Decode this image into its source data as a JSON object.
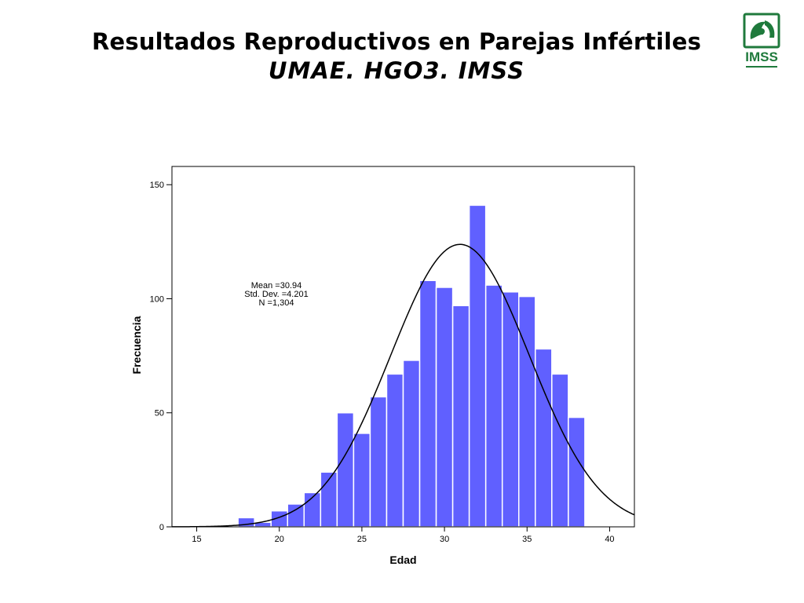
{
  "slide": {
    "title_line1": "Resultados Reproductivos en Parejas Infértiles",
    "title_line2": "UMAE. HGO3. IMSS",
    "logo_text": "IMSS",
    "logo_color": "#1f7a3c"
  },
  "chart_data": {
    "type": "bar",
    "chart_subtype": "histogram",
    "xlabel": "Edad",
    "ylabel": "Frecuencia",
    "xlim": [
      13.5,
      41.5
    ],
    "ylim": [
      0,
      158
    ],
    "x_ticks": [
      15,
      20,
      25,
      30,
      35,
      40
    ],
    "y_ticks": [
      0,
      50,
      100,
      150
    ],
    "bin_width": 1,
    "bins": [
      {
        "x": 18,
        "value": 4
      },
      {
        "x": 19,
        "value": 2
      },
      {
        "x": 20,
        "value": 7
      },
      {
        "x": 21,
        "value": 10
      },
      {
        "x": 22,
        "value": 15
      },
      {
        "x": 23,
        "value": 24
      },
      {
        "x": 24,
        "value": 50
      },
      {
        "x": 25,
        "value": 41
      },
      {
        "x": 26,
        "value": 57
      },
      {
        "x": 27,
        "value": 67
      },
      {
        "x": 28,
        "value": 73
      },
      {
        "x": 29,
        "value": 108
      },
      {
        "x": 30,
        "value": 105
      },
      {
        "x": 31,
        "value": 97
      },
      {
        "x": 32,
        "value": 141
      },
      {
        "x": 33,
        "value": 106
      },
      {
        "x": 34,
        "value": 103
      },
      {
        "x": 35,
        "value": 101
      },
      {
        "x": 36,
        "value": 78
      },
      {
        "x": 37,
        "value": 67
      },
      {
        "x": 38,
        "value": 48
      }
    ],
    "normal_curve": {
      "mean": 30.94,
      "std": 4.201,
      "n": 1304
    },
    "stats_lines": [
      "Mean =30.94",
      "Std. Dev. =4.201",
      "N =1,304"
    ],
    "bar_color": "#6060ff",
    "bar_edge_color": "#ffffff",
    "curve_color": "#000000",
    "grid": false,
    "legend": "none"
  }
}
